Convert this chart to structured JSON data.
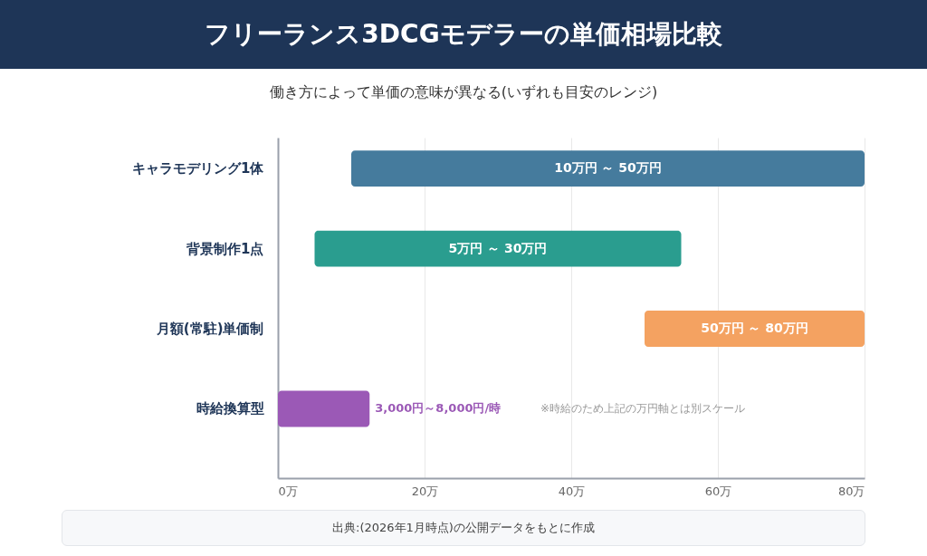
{
  "chart_data": {
    "type": "bar",
    "orientation": "horizontal",
    "title": "フリーランス3DCGモデラーの単価相場比較",
    "subtitle": "働き方によって単価の意味が異なる(いずれも目安のレンジ)",
    "categories": [
      "キャラモデリング1体",
      "背景制作1点",
      "月額(常駐)単価制",
      "時給換算型"
    ],
    "base": [
      10,
      5,
      50,
      0
    ],
    "values": [
      70,
      50,
      30,
      12.5
    ],
    "colors": [
      "#457b9d",
      "#2a9d8f",
      "#f4a261",
      "#9b59b6"
    ],
    "xlim": [
      0,
      80
    ],
    "xticks": [
      {
        "value": 0,
        "label": "0万"
      },
      {
        "value": 20,
        "label": "20万"
      },
      {
        "value": 40,
        "label": "40万"
      },
      {
        "value": 60,
        "label": "60万"
      },
      {
        "value": 80,
        "label": "80万"
      }
    ],
    "grid": "x",
    "legend": false,
    "annotations": [
      "10万円 ～ 50万円",
      "5万円 ～ 30万円",
      "50万円 ～ 80万円",
      "3,000円～8,000円/時",
      "※時給のため上記の万円軸とは別スケール",
      "出典:(2026年1月時点)の公開データをもとに作成"
    ]
  }
}
